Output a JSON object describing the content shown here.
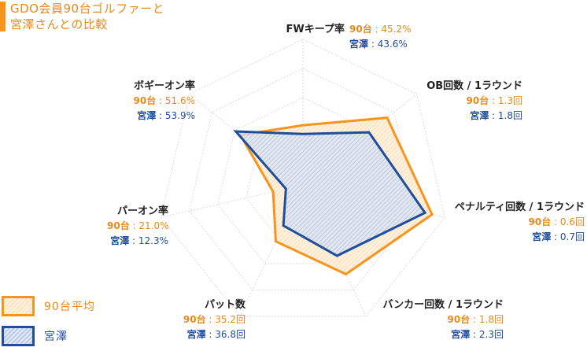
{
  "title": {
    "line1": "GDO会員90台ゴルファーと",
    "line2": "宮澤さんとの比較"
  },
  "legend": [
    {
      "label": "90台平均",
      "color": "#f7941d"
    },
    {
      "label": "宮澤",
      "color": "#1f4e9c"
    }
  ],
  "labels": {
    "k90": "90台",
    "kmiya": "宮澤",
    "sep": " : "
  },
  "chart_data": {
    "type": "radar",
    "axes": [
      {
        "name": "FWキープ率",
        "v90": "45.2%",
        "vmiya": "43.6%"
      },
      {
        "name": "OB回数 / 1ラウンド",
        "v90": "1.3回",
        "vmiya": "1.8回"
      },
      {
        "name": "ペナルティ回数 / 1ラウンド",
        "v90": "0.6回",
        "vmiya": "0.7回"
      },
      {
        "name": "バンカー回数 / 1ラウンド",
        "v90": "1.8回",
        "vmiya": "2.3回"
      },
      {
        "name": "パット数",
        "v90": "35.2回",
        "vmiya": "36.8回"
      },
      {
        "name": "パーオン率",
        "v90": "21.0%",
        "vmiya": "12.3%"
      },
      {
        "name": "ボギーオン率",
        "v90": "51.6%",
        "vmiya": "53.9%"
      }
    ],
    "series": [
      {
        "name": "90台平均",
        "color": "#f7941d",
        "r": [
          0.41,
          0.74,
          0.91,
          0.68,
          0.43,
          0.21,
          0.55
        ]
      },
      {
        "name": "宮澤",
        "color": "#1f4e9c",
        "r": [
          0.35,
          0.58,
          0.86,
          0.54,
          0.31,
          0.12,
          0.59
        ]
      }
    ],
    "levels": 5
  }
}
